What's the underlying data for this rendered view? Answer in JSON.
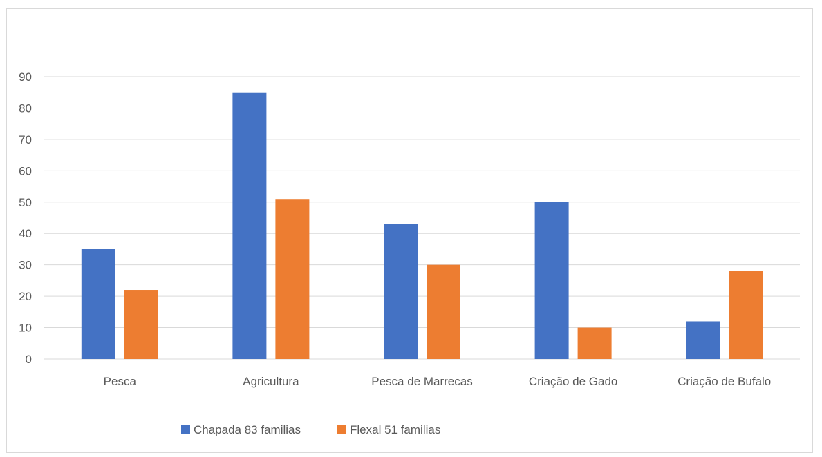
{
  "chart_data": {
    "type": "bar",
    "title": "",
    "xlabel": "",
    "ylabel": "",
    "categories": [
      "Pesca",
      "Agricultura",
      "Pesca de Marrecas",
      "Criação de Gado",
      "Criação de Bufalo"
    ],
    "series": [
      {
        "name": "Chapada 83 familias",
        "values": [
          35,
          85,
          43,
          50,
          12
        ],
        "color": "#4472C4"
      },
      {
        "name": "Flexal 51 familias",
        "values": [
          22,
          51,
          30,
          10,
          28
        ],
        "color": "#ED7D31"
      }
    ],
    "ylim": [
      0,
      90
    ],
    "yticks": [
      0,
      10,
      20,
      30,
      40,
      50,
      60,
      70,
      80,
      90
    ],
    "grid": true,
    "gridline_color": "#d9d9d9",
    "legend_position": "bottom"
  }
}
